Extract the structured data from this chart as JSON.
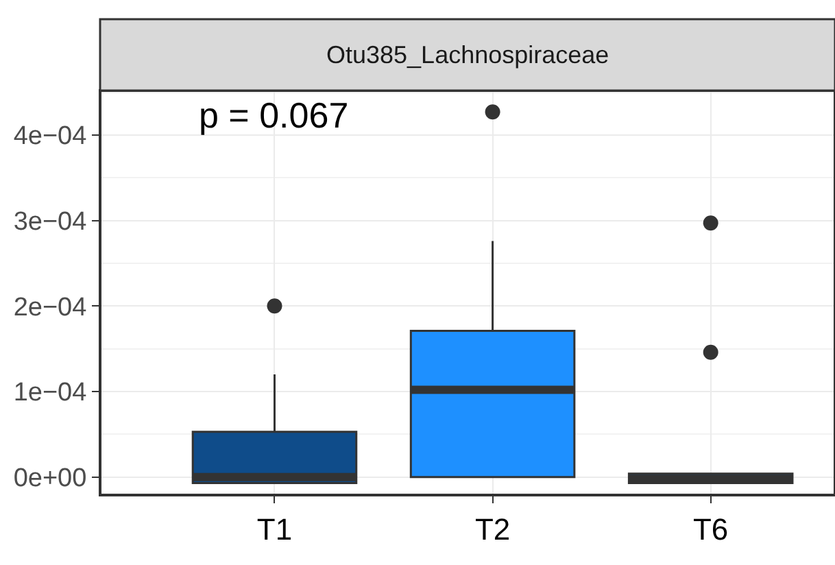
{
  "chart_data": {
    "type": "box",
    "title": "Otu385_Lachnospiraceae",
    "categories": [
      "T1",
      "T2",
      "T6"
    ],
    "colors": [
      "#0f4c8a",
      "#1e90ff",
      "#0f4c8a"
    ],
    "boxes": [
      {
        "q1": -7e-06,
        "median": 0.0,
        "q3": 5.3e-05,
        "high": 0.00012,
        "outliers": [
          0.0002
        ]
      },
      {
        "q1": 0.0,
        "median": 0.000102,
        "q3": 0.000171,
        "high": 0.000276,
        "outliers": [
          0.000427
        ]
      },
      {
        "q1": -7e-06,
        "median": -2e-06,
        "q3": 4e-06,
        "outliers": [
          0.000146,
          0.000297
        ]
      }
    ],
    "ylim": [
      -2.1e-05,
      0.000452
    ],
    "yticks": [
      {
        "value": 0,
        "label": "0e+00"
      },
      {
        "value": 0.0001,
        "label": "1e−04"
      },
      {
        "value": 0.0002,
        "label": "2e−04"
      },
      {
        "value": 0.0003,
        "label": "3e−04"
      },
      {
        "value": 0.0004,
        "label": "4e−04"
      }
    ],
    "grid": true,
    "annotations": [
      "p = 0.067"
    ]
  }
}
